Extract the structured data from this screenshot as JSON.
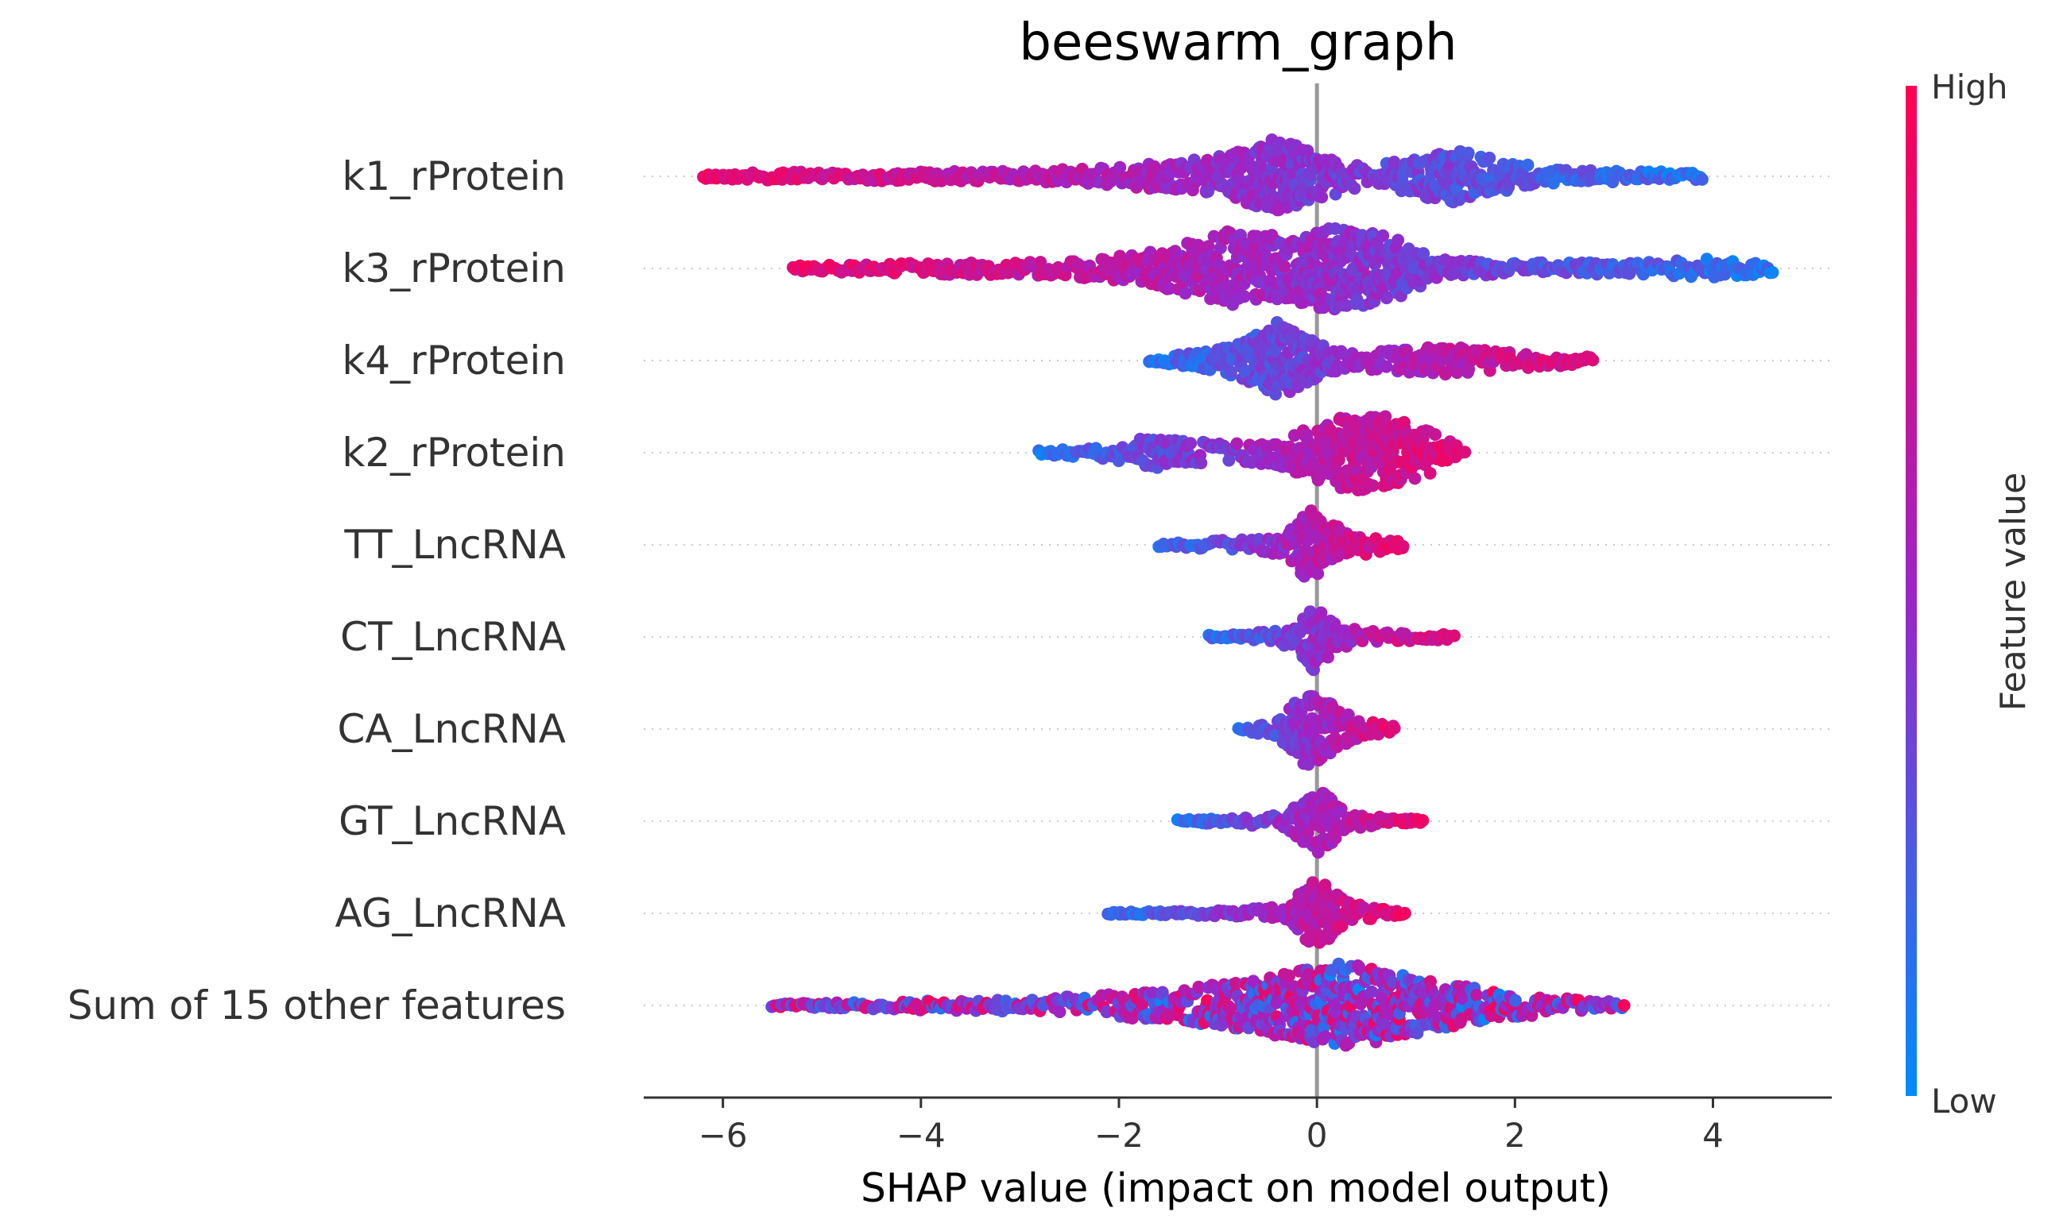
{
  "chart_data": {
    "type": "scatter",
    "subtype": "shap-beeswarm",
    "title": "beeswarm_graph",
    "xlabel": "SHAP value (impact on model output)",
    "ylabel": "",
    "xlim": [
      -6.8,
      5.2
    ],
    "xticks": [
      -6,
      -4,
      -2,
      0,
      2,
      4
    ],
    "xtick_labels": [
      "−6",
      "−4",
      "−2",
      "0",
      "2",
      "4"
    ],
    "zero_line": 0,
    "grid": "dotted horizontal guide per feature",
    "colorbar": {
      "title": "Feature value",
      "high_label": "High",
      "low_label": "Low",
      "high_color": "#ff0052",
      "mid_color": "#9d24c7",
      "low_color": "#008bfb",
      "placement": "right"
    },
    "features": [
      {
        "name": "k1_rProtein",
        "min": -6.2,
        "max": 3.9,
        "peak": -0.4,
        "spread": 1.3,
        "width": 0.46,
        "low_side": "right",
        "profile": [
          [
            -6.2,
            0.05
          ],
          [
            -5.5,
            0.1
          ],
          [
            -3,
            0.12
          ],
          [
            -2,
            0.22
          ],
          [
            -1,
            0.45
          ],
          [
            -0.4,
            0.9
          ],
          [
            0,
            0.55
          ],
          [
            0.5,
            0.2
          ],
          [
            1,
            0.45
          ],
          [
            1.4,
            0.65
          ],
          [
            2,
            0.3
          ],
          [
            2.6,
            0.15
          ],
          [
            3.3,
            0.12
          ],
          [
            3.9,
            0.08
          ]
        ]
      },
      {
        "name": "k3_rProtein",
        "min": -5.3,
        "max": 4.6,
        "peak": -0.2,
        "spread": 1.6,
        "width": 0.5,
        "low_side": "right",
        "profile": [
          [
            -5.3,
            0.06
          ],
          [
            -4,
            0.12
          ],
          [
            -2.5,
            0.18
          ],
          [
            -1.7,
            0.35
          ],
          [
            -0.9,
            0.8
          ],
          [
            -0.3,
            0.7
          ],
          [
            0.2,
            0.95
          ],
          [
            0.8,
            0.65
          ],
          [
            1.2,
            0.2
          ],
          [
            2,
            0.12
          ],
          [
            3.3,
            0.14
          ],
          [
            4,
            0.22
          ],
          [
            4.6,
            0.1
          ]
        ]
      },
      {
        "name": "k4_rProtein",
        "min": -1.7,
        "max": 2.8,
        "peak": -0.4,
        "spread": 0.9,
        "width": 0.44,
        "low_side": "left",
        "profile": [
          [
            -1.7,
            0.05
          ],
          [
            -1.2,
            0.2
          ],
          [
            -0.8,
            0.4
          ],
          [
            -0.4,
            0.95
          ],
          [
            -0.1,
            0.55
          ],
          [
            0.3,
            0.2
          ],
          [
            0.7,
            0.25
          ],
          [
            1,
            0.3
          ],
          [
            1.3,
            0.35
          ],
          [
            2,
            0.2
          ],
          [
            2.8,
            0.08
          ]
        ]
      },
      {
        "name": "k2_rProtein",
        "min": -2.8,
        "max": 1.5,
        "peak": 0.3,
        "spread": 0.9,
        "width": 0.5,
        "low_side": "left",
        "profile": [
          [
            -2.8,
            0.05
          ],
          [
            -2.2,
            0.12
          ],
          [
            -1.7,
            0.35
          ],
          [
            -1.3,
            0.25
          ],
          [
            -0.8,
            0.2
          ],
          [
            -0.4,
            0.3
          ],
          [
            0,
            0.6
          ],
          [
            0.3,
            0.85
          ],
          [
            0.7,
            0.8
          ],
          [
            1.1,
            0.5
          ],
          [
            1.5,
            0.1
          ]
        ]
      },
      {
        "name": "TT_LncRNA",
        "min": -1.6,
        "max": 0.9,
        "peak": -0.1,
        "spread": 0.5,
        "width": 0.42,
        "low_side": "left",
        "profile": [
          [
            -1.6,
            0.05
          ],
          [
            -1.2,
            0.1
          ],
          [
            -0.6,
            0.15
          ],
          [
            -0.3,
            0.3
          ],
          [
            -0.1,
            0.95
          ],
          [
            0.2,
            0.5
          ],
          [
            0.5,
            0.25
          ],
          [
            0.9,
            0.08
          ]
        ]
      },
      {
        "name": "CT_LncRNA",
        "min": -1.1,
        "max": 1.4,
        "peak": -0.05,
        "spread": 0.4,
        "width": 0.4,
        "low_side": "left",
        "profile": [
          [
            -1.1,
            0.05
          ],
          [
            -0.6,
            0.12
          ],
          [
            -0.2,
            0.3
          ],
          [
            -0.05,
            0.95
          ],
          [
            0.2,
            0.3
          ],
          [
            0.6,
            0.15
          ],
          [
            1.4,
            0.06
          ]
        ]
      },
      {
        "name": "CA_LncRNA",
        "min": -0.8,
        "max": 0.8,
        "peak": -0.05,
        "spread": 0.35,
        "width": 0.44,
        "low_side": "left",
        "profile": [
          [
            -0.8,
            0.05
          ],
          [
            -0.4,
            0.2
          ],
          [
            -0.1,
            0.95
          ],
          [
            0.15,
            0.6
          ],
          [
            0.4,
            0.25
          ],
          [
            0.8,
            0.06
          ]
        ]
      },
      {
        "name": "GT_LncRNA",
        "min": -1.4,
        "max": 1.1,
        "peak": 0,
        "spread": 0.35,
        "width": 0.4,
        "low_side": "left",
        "profile": [
          [
            -1.4,
            0.05
          ],
          [
            -0.8,
            0.08
          ],
          [
            -0.3,
            0.2
          ],
          [
            0,
            0.95
          ],
          [
            0.3,
            0.2
          ],
          [
            0.7,
            0.1
          ],
          [
            1.1,
            0.05
          ]
        ]
      },
      {
        "name": "AG_LncRNA",
        "min": -2.1,
        "max": 0.9,
        "peak": 0,
        "spread": 0.3,
        "width": 0.42,
        "low_side": "left",
        "profile": [
          [
            -2.1,
            0.03
          ],
          [
            -1.5,
            0.05
          ],
          [
            -0.8,
            0.08
          ],
          [
            -0.3,
            0.2
          ],
          [
            0,
            0.95
          ],
          [
            0.3,
            0.3
          ],
          [
            0.6,
            0.12
          ],
          [
            0.9,
            0.05
          ]
        ]
      },
      {
        "name": "Sum of 15 other features",
        "min": -5.5,
        "max": 3.1,
        "peak": 0.3,
        "spread": 1.3,
        "width": 0.5,
        "low_side": "none",
        "profile": [
          [
            -5.5,
            0.03
          ],
          [
            -4.7,
            0.08
          ],
          [
            -3.5,
            0.12
          ],
          [
            -2.3,
            0.2
          ],
          [
            -1.2,
            0.4
          ],
          [
            -0.3,
            0.7
          ],
          [
            0.3,
            0.95
          ],
          [
            1,
            0.6
          ],
          [
            1.8,
            0.3
          ],
          [
            2.5,
            0.15
          ],
          [
            3.1,
            0.08
          ]
        ]
      }
    ]
  }
}
